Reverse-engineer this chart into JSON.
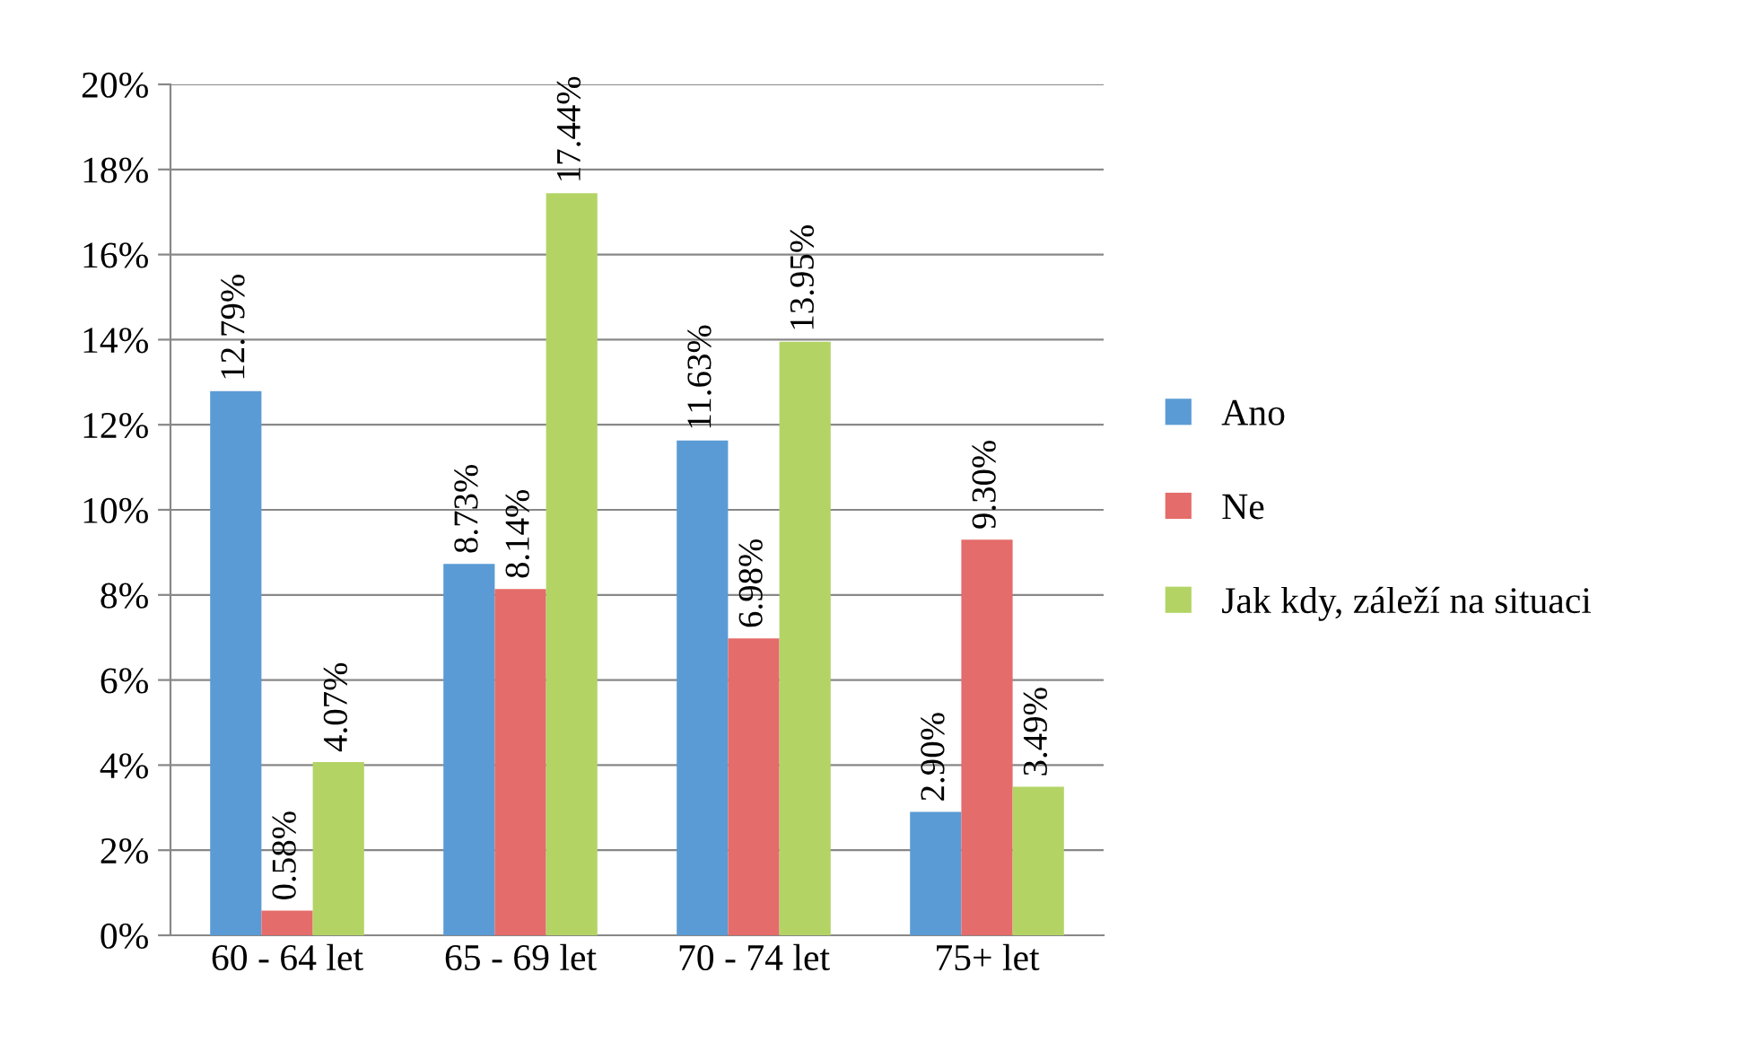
{
  "chart_data": {
    "type": "bar",
    "categories": [
      "60 - 64 let",
      "65 - 69 let",
      "70 - 74 let",
      "75+ let"
    ],
    "series": [
      {
        "name": "Ano",
        "color": "#5b9bd5",
        "values": [
          12.79,
          8.73,
          11.63,
          2.9
        ],
        "value_labels": [
          "12.79%",
          "8.73%",
          "11.63%",
          "2.90%"
        ]
      },
      {
        "name": "Ne",
        "color": "#e46c6a",
        "values": [
          0.58,
          8.14,
          6.98,
          9.3
        ],
        "value_labels": [
          "0.58%",
          "8.14%",
          "6.98%",
          "9.30%"
        ]
      },
      {
        "name": "Jak kdy, záleží na situaci",
        "color": "#b3d465",
        "values": [
          4.07,
          17.44,
          13.95,
          3.49
        ],
        "value_labels": [
          "4.07%",
          "17.44%",
          "13.95%",
          "3.49%"
        ]
      }
    ],
    "ylim": [
      0,
      20
    ],
    "yticks": [
      {
        "value": 0,
        "label": "0%"
      },
      {
        "value": 2,
        "label": "2%"
      },
      {
        "value": 4,
        "label": "4%"
      },
      {
        "value": 6,
        "label": "6%"
      },
      {
        "value": 8,
        "label": "8%"
      },
      {
        "value": 10,
        "label": "10%"
      },
      {
        "value": 12,
        "label": "12%"
      },
      {
        "value": 14,
        "label": "14%"
      },
      {
        "value": 16,
        "label": "16%"
      },
      {
        "value": 18,
        "label": "18%"
      },
      {
        "value": 20,
        "label": "20%"
      }
    ],
    "grid": "y",
    "legend": "right"
  }
}
